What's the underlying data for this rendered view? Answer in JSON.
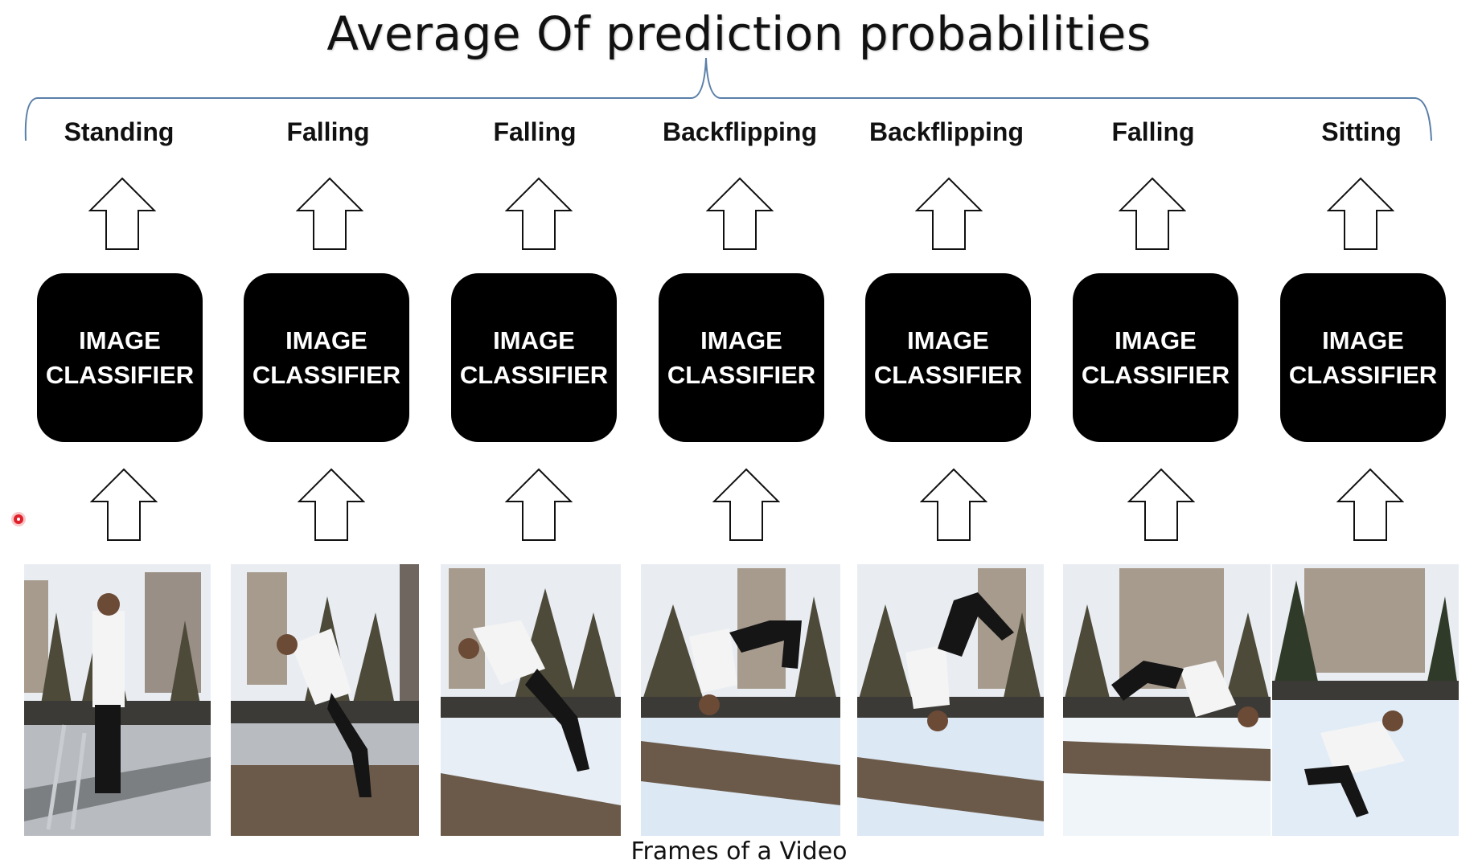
{
  "title": "Average Of prediction probabilities",
  "brace_color": "#5a7fa8",
  "columns": [
    {
      "label": "Standing",
      "classifier": "IMAGE\nCLASSIFIER"
    },
    {
      "label": "Falling",
      "classifier": "IMAGE\nCLASSIFIER"
    },
    {
      "label": "Falling",
      "classifier": "IMAGE\nCLASSIFIER"
    },
    {
      "label": "Backflipping",
      "classifier": "IMAGE\nCLASSIFIER"
    },
    {
      "label": "Backflipping",
      "classifier": "IMAGE\nCLASSIFIER"
    },
    {
      "label": "Falling",
      "classifier": "IMAGE\nCLASSIFIER"
    },
    {
      "label": "Sitting",
      "classifier": "IMAGE\nCLASSIFIER"
    }
  ],
  "caption": "Frames of a Video",
  "icons": {
    "arrow": "up-arrow-icon",
    "cursor": "cursor-dot-icon"
  }
}
